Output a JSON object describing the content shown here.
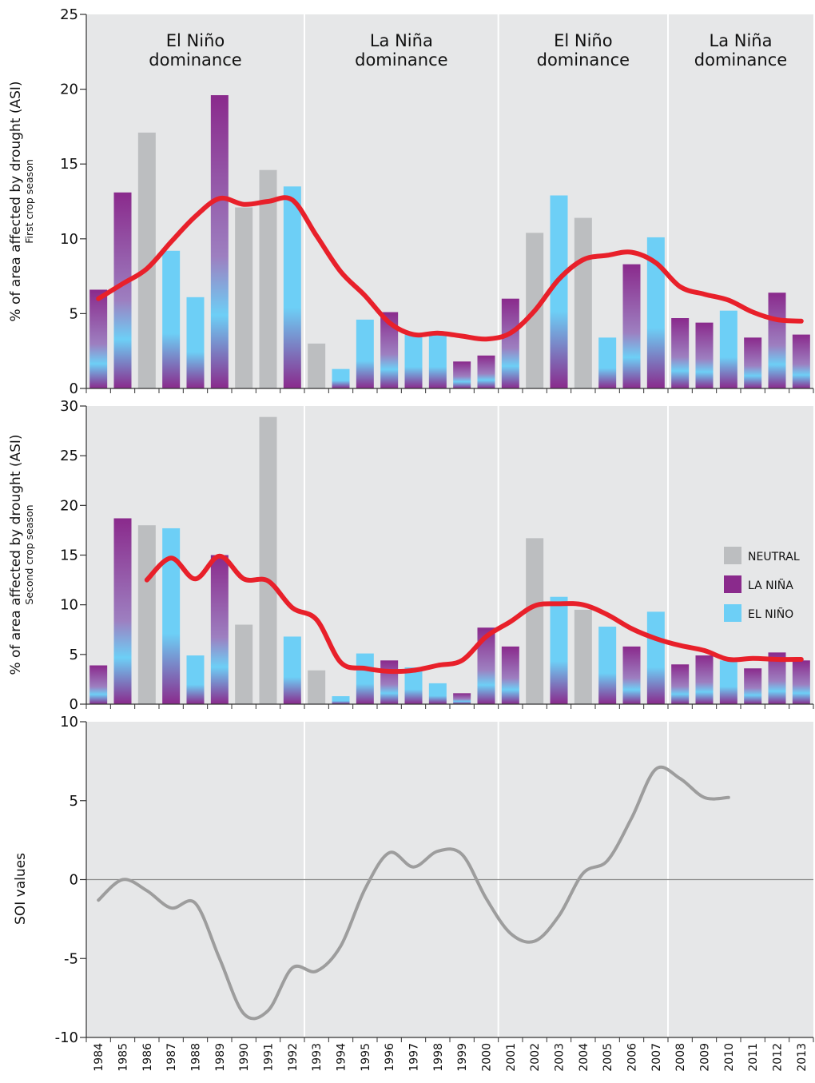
{
  "colors": {
    "panel_bg": "#e6e7e8",
    "neutral": "#bcbec0",
    "la_nina": "#8a2a8c",
    "el_nino": "#6dcff6",
    "trend": "#e8202a",
    "soi_line": "#9d9d9d",
    "divider": "#ffffff"
  },
  "years": [
    "1984",
    "1985",
    "1986",
    "1987",
    "1988",
    "1989",
    "1990",
    "1991",
    "1992",
    "1993",
    "1994",
    "1995",
    "1996",
    "1997",
    "1998",
    "1999",
    "2000",
    "2001",
    "2002",
    "2003",
    "2004",
    "2005",
    "2006",
    "2007",
    "2008",
    "2009",
    "2010",
    "2011",
    "2012",
    "2013"
  ],
  "phases": [
    {
      "label_line1": "El Niño",
      "label_line2": "dominance",
      "from": "1984",
      "to": "1992"
    },
    {
      "label_line1": "La Niña",
      "label_line2": "dominance",
      "from": "1993",
      "to": "2000"
    },
    {
      "label_line1": "El Niño",
      "label_line2": "dominance",
      "from": "2001",
      "to": "2007"
    },
    {
      "label_line1": "La Niña",
      "label_line2": "dominance",
      "from": "2008",
      "to": "2013"
    }
  ],
  "legend": {
    "neutral": "NEUTRAL",
    "la_nina": "LA NIÑA",
    "el_nino": "EL NIÑO"
  },
  "chart_data": [
    {
      "type": "bar",
      "ylabel": "% of area affected by drought (ASI)",
      "ylabel_sub": "First crop season",
      "ylim": [
        0,
        25
      ],
      "yticks": [
        0,
        5,
        10,
        15,
        20,
        25
      ],
      "categories": [
        "1984",
        "1985",
        "1986",
        "1987",
        "1988",
        "1989",
        "1990",
        "1991",
        "1992",
        "1993",
        "1994",
        "1995",
        "1996",
        "1997",
        "1998",
        "1999",
        "2000",
        "2001",
        "2002",
        "2003",
        "2004",
        "2005",
        "2006",
        "2007",
        "2008",
        "2009",
        "2010",
        "2011",
        "2012",
        "2013"
      ],
      "values": [
        6.6,
        13.1,
        17.1,
        9.2,
        6.1,
        19.6,
        12.1,
        14.6,
        13.5,
        3.0,
        1.3,
        4.6,
        5.1,
        3.6,
        3.6,
        1.8,
        2.2,
        6.0,
        10.4,
        12.9,
        11.4,
        3.4,
        8.3,
        10.1,
        4.7,
        4.4,
        5.2,
        3.4,
        6.4,
        3.6
      ],
      "phase": [
        "la_nina",
        "la_nina",
        "neutral",
        "el_nino",
        "el_nino",
        "la_nina",
        "neutral",
        "neutral",
        "el_nino",
        "neutral",
        "el_nino",
        "el_nino",
        "la_nina",
        "el_nino",
        "el_nino",
        "la_nina",
        "la_nina",
        "la_nina",
        "neutral",
        "el_nino",
        "neutral",
        "el_nino",
        "la_nina",
        "el_nino",
        "la_nina",
        "la_nina",
        "el_nino",
        "la_nina",
        "la_nina",
        "la_nina"
      ],
      "trend": [
        {
          "x": 1984.0,
          "y": 6.0
        },
        {
          "x": 1985.0,
          "y": 7.0
        },
        {
          "x": 1986.0,
          "y": 8.0
        },
        {
          "x": 1987.0,
          "y": 9.8
        },
        {
          "x": 1988.0,
          "y": 11.5
        },
        {
          "x": 1989.0,
          "y": 12.7
        },
        {
          "x": 1990.0,
          "y": 12.3
        },
        {
          "x": 1991.0,
          "y": 12.5
        },
        {
          "x": 1992.0,
          "y": 12.6
        },
        {
          "x": 1993.0,
          "y": 10.2
        },
        {
          "x": 1994.0,
          "y": 7.8
        },
        {
          "x": 1995.0,
          "y": 6.2
        },
        {
          "x": 1996.0,
          "y": 4.4
        },
        {
          "x": 1997.0,
          "y": 3.6
        },
        {
          "x": 1998.0,
          "y": 3.7
        },
        {
          "x": 1999.0,
          "y": 3.5
        },
        {
          "x": 2000.0,
          "y": 3.3
        },
        {
          "x": 2001.0,
          "y": 3.7
        },
        {
          "x": 2002.0,
          "y": 5.2
        },
        {
          "x": 2003.0,
          "y": 7.3
        },
        {
          "x": 2004.0,
          "y": 8.6
        },
        {
          "x": 2005.0,
          "y": 8.9
        },
        {
          "x": 2006.0,
          "y": 9.1
        },
        {
          "x": 2007.0,
          "y": 8.4
        },
        {
          "x": 2008.0,
          "y": 6.8
        },
        {
          "x": 2009.0,
          "y": 6.3
        },
        {
          "x": 2010.0,
          "y": 5.9
        },
        {
          "x": 2011.0,
          "y": 5.1
        },
        {
          "x": 2012.0,
          "y": 4.6
        },
        {
          "x": 2013.0,
          "y": 4.5
        }
      ]
    },
    {
      "type": "bar",
      "ylabel": "% of area affected by drought (ASI)",
      "ylabel_sub": "Second crop season",
      "ylim": [
        0,
        30
      ],
      "yticks": [
        0,
        5,
        10,
        15,
        20,
        25,
        30
      ],
      "categories": [
        "1984",
        "1985",
        "1986",
        "1987",
        "1988",
        "1989",
        "1990",
        "1991",
        "1992",
        "1993",
        "1994",
        "1995",
        "1996",
        "1997",
        "1998",
        "1999",
        "2000",
        "2001",
        "2002",
        "2003",
        "2004",
        "2005",
        "2006",
        "2007",
        "2008",
        "2009",
        "2010",
        "2011",
        "2012",
        "2013"
      ],
      "values": [
        3.9,
        18.7,
        18.0,
        17.7,
        4.9,
        15.0,
        8.0,
        28.9,
        6.8,
        3.4,
        0.8,
        5.1,
        4.4,
        3.7,
        2.1,
        1.1,
        7.7,
        5.8,
        16.7,
        10.8,
        9.5,
        7.8,
        5.8,
        9.3,
        4.0,
        4.9,
        4.4,
        3.6,
        5.2,
        4.4
      ],
      "phase": [
        "la_nina",
        "la_nina",
        "neutral",
        "el_nino",
        "el_nino",
        "la_nina",
        "neutral",
        "neutral",
        "el_nino",
        "neutral",
        "el_nino",
        "el_nino",
        "la_nina",
        "el_nino",
        "el_nino",
        "la_nina",
        "la_nina",
        "la_nina",
        "neutral",
        "el_nino",
        "neutral",
        "el_nino",
        "la_nina",
        "el_nino",
        "la_nina",
        "la_nina",
        "el_nino",
        "la_nina",
        "la_nina",
        "la_nina"
      ],
      "trend": [
        {
          "x": 1986.0,
          "y": 12.5
        },
        {
          "x": 1987.0,
          "y": 14.7
        },
        {
          "x": 1988.0,
          "y": 12.6
        },
        {
          "x": 1989.0,
          "y": 14.9
        },
        {
          "x": 1990.0,
          "y": 12.6
        },
        {
          "x": 1991.0,
          "y": 12.4
        },
        {
          "x": 1992.0,
          "y": 9.7
        },
        {
          "x": 1993.0,
          "y": 8.5
        },
        {
          "x": 1994.0,
          "y": 4.2
        },
        {
          "x": 1995.0,
          "y": 3.6
        },
        {
          "x": 1996.0,
          "y": 3.3
        },
        {
          "x": 1997.0,
          "y": 3.4
        },
        {
          "x": 1998.0,
          "y": 3.9
        },
        {
          "x": 1999.0,
          "y": 4.4
        },
        {
          "x": 2000.0,
          "y": 6.8
        },
        {
          "x": 2001.0,
          "y": 8.3
        },
        {
          "x": 2002.0,
          "y": 9.9
        },
        {
          "x": 2003.0,
          "y": 10.1
        },
        {
          "x": 2004.0,
          "y": 10.0
        },
        {
          "x": 2005.0,
          "y": 9.0
        },
        {
          "x": 2006.0,
          "y": 7.6
        },
        {
          "x": 2007.0,
          "y": 6.6
        },
        {
          "x": 2008.0,
          "y": 5.9
        },
        {
          "x": 2009.0,
          "y": 5.4
        },
        {
          "x": 2010.0,
          "y": 4.5
        },
        {
          "x": 2011.0,
          "y": 4.6
        },
        {
          "x": 2012.0,
          "y": 4.5
        },
        {
          "x": 2013.0,
          "y": 4.5
        }
      ]
    },
    {
      "type": "line",
      "ylabel": "SOI values",
      "ylim": [
        -10,
        10
      ],
      "yticks": [
        10,
        5,
        0,
        -5,
        -10
      ],
      "x": [
        1984,
        1985,
        1986,
        1987,
        1988,
        1989,
        1990,
        1991,
        1992,
        1993,
        1994,
        1995,
        1996,
        1997,
        1998,
        1999,
        2000,
        2001,
        2002,
        2003,
        2004,
        2005,
        2006,
        2007,
        2008,
        2009,
        2010
      ],
      "values": [
        -1.3,
        0.0,
        -0.7,
        -1.8,
        -1.5,
        -5.0,
        -8.5,
        -8.3,
        -5.6,
        -5.8,
        -4.2,
        -0.6,
        1.7,
        0.8,
        1.8,
        1.6,
        -1.2,
        -3.4,
        -3.9,
        -2.3,
        0.4,
        1.2,
        3.9,
        7.0,
        6.4,
        5.2,
        5.2
      ]
    }
  ]
}
